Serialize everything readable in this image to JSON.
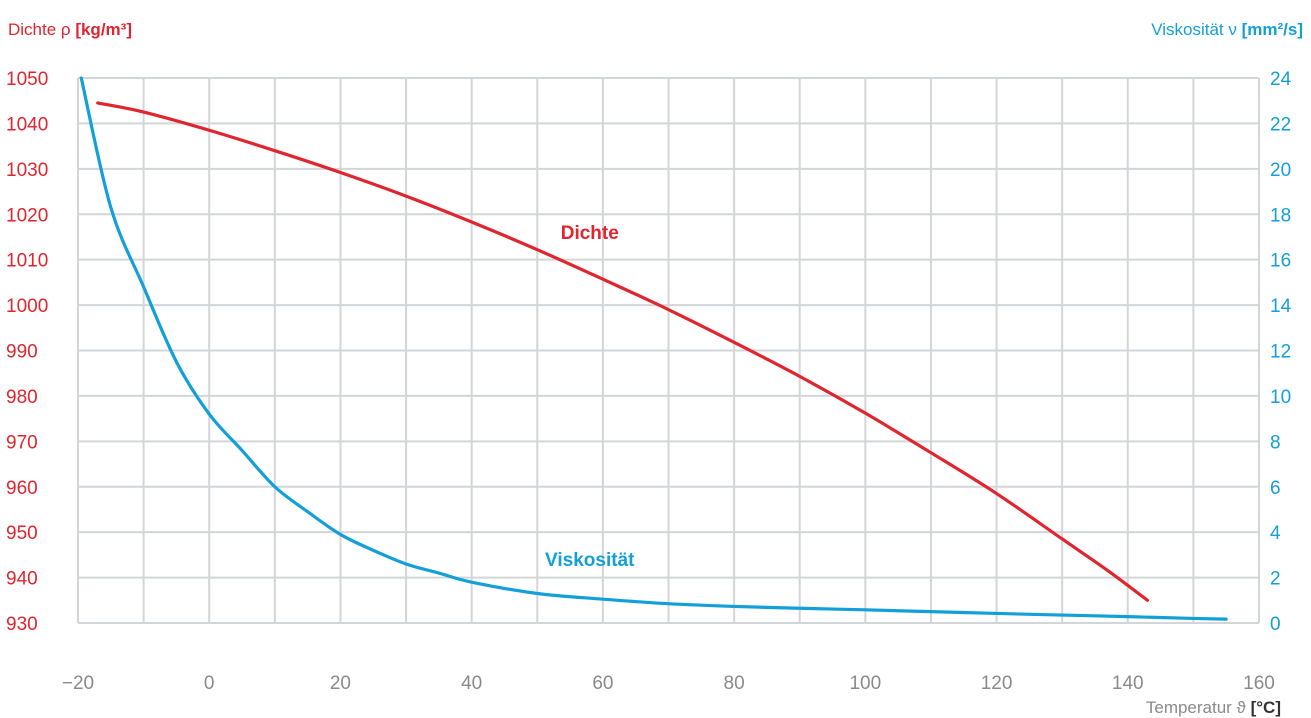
{
  "colors": {
    "density": "#e0252f",
    "viscosity": "#139fd8",
    "grid": "#d3d6d9",
    "axis_text": "#8a8a8a"
  },
  "chart_data": {
    "type": "line",
    "xlabel": {
      "prefix": "Temperatur ϑ ",
      "unit": "[°C]"
    },
    "ylabel_left": {
      "prefix": "Dichte ρ ",
      "unit": "[kg/m³]"
    },
    "ylabel_right": {
      "prefix": "Viskosität ν ",
      "unit": "[mm²/s]"
    },
    "xlim": [
      -20,
      160
    ],
    "ylim_left": [
      930,
      1050
    ],
    "ylim_right": [
      0,
      24
    ],
    "x_ticks": [
      "−20",
      "0",
      "20",
      "40",
      "60",
      "80",
      "100",
      "120",
      "140",
      "160"
    ],
    "y_left_ticks": [
      "930",
      "940",
      "950",
      "960",
      "970",
      "980",
      "990",
      "1000",
      "1010",
      "1020",
      "1030",
      "1040",
      "1050"
    ],
    "y_right_ticks": [
      "0",
      "2",
      "4",
      "6",
      "8",
      "10",
      "12",
      "14",
      "16",
      "18",
      "20",
      "22",
      "24"
    ],
    "grid": true,
    "series": [
      {
        "name": "Dichte",
        "axis": "left",
        "points": [
          [
            -17,
            1044.5
          ],
          [
            -10,
            1042.5
          ],
          [
            0,
            1038.5
          ],
          [
            10,
            1034
          ],
          [
            20,
            1029.2
          ],
          [
            30,
            1024
          ],
          [
            40,
            1018.3
          ],
          [
            50,
            1012.2
          ],
          [
            60,
            1005.7
          ],
          [
            70,
            999
          ],
          [
            80,
            991.8
          ],
          [
            90,
            984.3
          ],
          [
            100,
            976.2
          ],
          [
            110,
            967.5
          ],
          [
            120,
            958.5
          ],
          [
            130,
            948.5
          ],
          [
            137,
            941.5
          ],
          [
            143,
            935
          ]
        ]
      },
      {
        "name": "Viskosität",
        "axis": "right",
        "points": [
          [
            -19.5,
            24
          ],
          [
            -15,
            18.3
          ],
          [
            -10,
            14.8
          ],
          [
            -5,
            11.5
          ],
          [
            0,
            9.2
          ],
          [
            5,
            7.6
          ],
          [
            10,
            6.0
          ],
          [
            15,
            4.9
          ],
          [
            20,
            3.9
          ],
          [
            25,
            3.2
          ],
          [
            30,
            2.6
          ],
          [
            35,
            2.2
          ],
          [
            40,
            1.8
          ],
          [
            50,
            1.3
          ],
          [
            60,
            1.05
          ],
          [
            70,
            0.85
          ],
          [
            80,
            0.73
          ],
          [
            90,
            0.65
          ],
          [
            100,
            0.58
          ],
          [
            110,
            0.5
          ],
          [
            120,
            0.42
          ],
          [
            130,
            0.35
          ],
          [
            140,
            0.28
          ],
          [
            150,
            0.2
          ],
          [
            155,
            0.17
          ]
        ]
      }
    ],
    "annotations": [
      {
        "text": "Dichte",
        "series": "Dichte",
        "x": 58,
        "y_left": 1014.5
      },
      {
        "text": "Viskosität",
        "series": "Viskosität",
        "x": 58,
        "y_left": 942.5
      }
    ]
  }
}
